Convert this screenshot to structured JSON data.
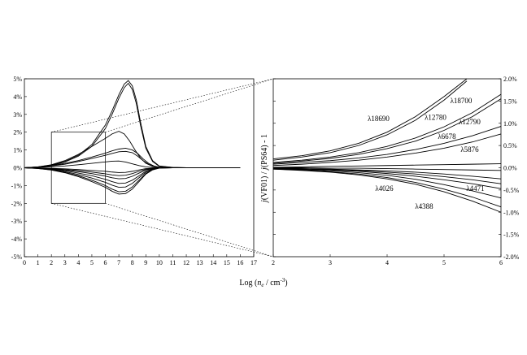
{
  "figure": {
    "xlabel_html": "Log (n<tspan font-style='italic'>e</tspan>... )",
    "xlabel_parts": [
      "Log (",
      "n",
      "e",
      " / cm",
      "-3",
      ")"
    ],
    "ylabel_parts": [
      "j",
      "(VF01) / ",
      "j",
      "(PS64) - 1"
    ]
  },
  "chart_data": [
    {
      "type": "line",
      "panel": "left",
      "title": "",
      "xlabel": "Log (ne / cm-3)",
      "ylabel": "",
      "xlim": [
        0,
        17
      ],
      "ylim": [
        -5,
        5
      ],
      "xticks": [
        0,
        1,
        2,
        3,
        4,
        5,
        6,
        7,
        8,
        9,
        10,
        11,
        12,
        13,
        14,
        15,
        16,
        17
      ],
      "yticks": [
        -5,
        -4,
        -3,
        -2,
        -1,
        0,
        1,
        2,
        3,
        4,
        5
      ],
      "ytick_labels": [
        "-5%",
        "-4%",
        "-3%",
        "-2%",
        "-1%",
        "0%",
        "1%",
        "2%",
        "3%",
        "4%",
        "5%"
      ],
      "zoom_box": {
        "x": [
          2,
          6
        ],
        "y": [
          -2,
          2
        ]
      },
      "series": [
        {
          "x": [
            0,
            1,
            2,
            3,
            4,
            5,
            6,
            6.5,
            7,
            7.4,
            7.7,
            8,
            8.3,
            8.6,
            9,
            9.5,
            10,
            11,
            12,
            16
          ],
          "values": [
            0,
            0.05,
            0.15,
            0.35,
            0.7,
            1.3,
            2.4,
            3.2,
            4.1,
            4.7,
            4.9,
            4.6,
            3.8,
            2.6,
            1.2,
            0.4,
            0.1,
            0.02,
            0,
            0
          ]
        },
        {
          "x": [
            0,
            1,
            2,
            3,
            4,
            5,
            6,
            6.5,
            7,
            7.4,
            7.7,
            8,
            8.3,
            8.6,
            9,
            9.5,
            10,
            11,
            12,
            16
          ],
          "values": [
            0,
            0.04,
            0.13,
            0.32,
            0.65,
            1.2,
            2.2,
            3.0,
            3.9,
            4.5,
            4.75,
            4.4,
            3.6,
            2.4,
            1.1,
            0.35,
            0.08,
            0.02,
            0,
            0
          ]
        },
        {
          "x": [
            0,
            1,
            2,
            3,
            4,
            5,
            6,
            6.5,
            7,
            7.4,
            7.8,
            8.2,
            8.6,
            9,
            9.5,
            10,
            11,
            12,
            16
          ],
          "values": [
            0,
            0.05,
            0.17,
            0.4,
            0.75,
            1.2,
            1.65,
            1.9,
            2.05,
            1.9,
            1.5,
            1.0,
            0.55,
            0.25,
            0.08,
            0.02,
            0,
            0,
            0
          ]
        },
        {
          "x": [
            0,
            1,
            2,
            3,
            4,
            5,
            6,
            6.5,
            7,
            7.5,
            8,
            8.4,
            8.8,
            9.2,
            9.6,
            10,
            11,
            12,
            16
          ],
          "values": [
            0,
            0.04,
            0.12,
            0.25,
            0.4,
            0.6,
            0.82,
            0.95,
            1.05,
            1.1,
            1.0,
            0.8,
            0.5,
            0.25,
            0.1,
            0.03,
            0,
            0,
            0
          ]
        },
        {
          "x": [
            0,
            1,
            2,
            3,
            4,
            5,
            6,
            6.5,
            7,
            7.5,
            8,
            8.4,
            8.8,
            9.2,
            9.6,
            10,
            11,
            12,
            16
          ],
          "values": [
            0,
            0.03,
            0.1,
            0.2,
            0.35,
            0.52,
            0.7,
            0.8,
            0.9,
            0.92,
            0.85,
            0.65,
            0.4,
            0.2,
            0.07,
            0.02,
            0,
            0,
            0
          ]
        },
        {
          "x": [
            0,
            1,
            2,
            3,
            4,
            5,
            6,
            6.5,
            7,
            7.5,
            8,
            8.5,
            9,
            9.5,
            10,
            11,
            12,
            16
          ],
          "values": [
            0,
            0.02,
            0.05,
            0.1,
            0.17,
            0.25,
            0.33,
            0.37,
            0.38,
            0.32,
            0.22,
            0.12,
            0.05,
            0.02,
            0,
            0,
            0,
            0
          ]
        },
        {
          "x": [
            0,
            1,
            2,
            3,
            4,
            5,
            6,
            6.5,
            7,
            7.5,
            8,
            8.5,
            9,
            9.5,
            10,
            11,
            12,
            16
          ],
          "values": [
            0,
            -0.01,
            -0.03,
            -0.06,
            -0.1,
            -0.15,
            -0.2,
            -0.24,
            -0.27,
            -0.26,
            -0.2,
            -0.12,
            -0.05,
            -0.02,
            0,
            0,
            0,
            0
          ]
        },
        {
          "x": [
            0,
            1,
            2,
            3,
            4,
            5,
            6,
            6.5,
            7,
            7.5,
            8,
            8.5,
            9,
            9.5,
            10,
            11,
            12,
            16
          ],
          "values": [
            0,
            -0.02,
            -0.05,
            -0.1,
            -0.16,
            -0.24,
            -0.34,
            -0.4,
            -0.44,
            -0.42,
            -0.33,
            -0.2,
            -0.09,
            -0.03,
            0,
            0,
            0,
            0
          ]
        },
        {
          "x": [
            0,
            1,
            2,
            3,
            4,
            5,
            6,
            6.5,
            7,
            7.5,
            8,
            8.5,
            9,
            9.5,
            10,
            11,
            12,
            16
          ],
          "values": [
            0,
            -0.02,
            -0.06,
            -0.13,
            -0.22,
            -0.33,
            -0.47,
            -0.56,
            -0.62,
            -0.6,
            -0.48,
            -0.3,
            -0.13,
            -0.04,
            0,
            0,
            0,
            0
          ]
        },
        {
          "x": [
            0,
            1,
            2,
            3,
            4,
            5,
            6,
            6.5,
            7,
            7.5,
            8,
            8.5,
            9,
            9.5,
            10,
            11,
            12,
            16
          ],
          "values": [
            0,
            -0.03,
            -0.08,
            -0.17,
            -0.3,
            -0.45,
            -0.65,
            -0.78,
            -0.88,
            -0.86,
            -0.7,
            -0.45,
            -0.2,
            -0.06,
            -0.01,
            0,
            0,
            0
          ]
        },
        {
          "x": [
            0,
            1,
            2,
            3,
            4,
            5,
            6,
            6.5,
            7,
            7.5,
            8,
            8.5,
            9,
            9.5,
            10,
            11,
            12,
            16
          ],
          "values": [
            0,
            -0.03,
            -0.1,
            -0.22,
            -0.38,
            -0.58,
            -0.82,
            -0.98,
            -1.1,
            -1.08,
            -0.88,
            -0.56,
            -0.25,
            -0.08,
            -0.01,
            0,
            0,
            0
          ]
        },
        {
          "x": [
            0,
            1,
            2,
            3,
            4,
            5,
            6,
            6.5,
            7,
            7.5,
            8,
            8.5,
            9,
            9.5,
            10,
            11,
            12,
            16
          ],
          "values": [
            0,
            -0.04,
            -0.12,
            -0.26,
            -0.45,
            -0.7,
            -1.0,
            -1.2,
            -1.35,
            -1.32,
            -1.08,
            -0.7,
            -0.32,
            -0.1,
            -0.02,
            0,
            0,
            0
          ]
        },
        {
          "x": [
            0,
            1,
            2,
            3,
            4,
            5,
            6,
            6.5,
            7,
            7.5,
            8,
            8.5,
            9,
            9.5,
            10,
            11,
            12,
            16
          ],
          "values": [
            0,
            -0.04,
            -0.13,
            -0.28,
            -0.5,
            -0.78,
            -1.1,
            -1.32,
            -1.48,
            -1.45,
            -1.2,
            -0.78,
            -0.36,
            -0.12,
            -0.02,
            0,
            0,
            0
          ]
        }
      ]
    },
    {
      "type": "line",
      "panel": "right",
      "title": "",
      "xlabel": "",
      "ylabel": "j(VF01) / j(PS64) - 1",
      "xlim": [
        2,
        6
      ],
      "ylim": [
        -2,
        2
      ],
      "xticks": [
        2,
        3,
        4,
        5,
        6
      ],
      "yticks": [
        -2,
        -1.5,
        -1,
        -0.5,
        0,
        0.5,
        1,
        1.5,
        2
      ],
      "ytick_labels": [
        "-2.0%",
        "-1.5%",
        "-1.0%",
        "-0.5%",
        "0.0%",
        "0.5%",
        "1.0%",
        "1.5%",
        "2.0%"
      ],
      "annotations": [
        {
          "text": "λ18690",
          "x": 3.85,
          "y": 1.05
        },
        {
          "text": "λ18700",
          "x": 5.3,
          "y": 1.45
        },
        {
          "text": "λ12780",
          "x": 4.85,
          "y": 1.08
        },
        {
          "text": "λ12790",
          "x": 5.45,
          "y": 0.98
        },
        {
          "text": "λ6678",
          "x": 5.05,
          "y": 0.65
        },
        {
          "text": "λ5876",
          "x": 5.45,
          "y": 0.36
        },
        {
          "text": "λ4026",
          "x": 3.95,
          "y": -0.52
        },
        {
          "text": "λ4471",
          "x": 5.55,
          "y": -0.52
        },
        {
          "text": "λ4388",
          "x": 4.65,
          "y": -0.92
        }
      ],
      "series": [
        {
          "x": [
            2,
            2.5,
            3,
            3.5,
            4,
            4.5,
            5,
            5.4
          ],
          "values": [
            0.2,
            0.27,
            0.38,
            0.55,
            0.8,
            1.15,
            1.6,
            2.0
          ]
        },
        {
          "x": [
            2,
            2.5,
            3,
            3.5,
            4,
            4.5,
            5,
            5.4
          ],
          "values": [
            0.17,
            0.24,
            0.34,
            0.5,
            0.74,
            1.07,
            1.52,
            1.95
          ]
        },
        {
          "x": [
            2,
            2.5,
            3,
            3.5,
            4,
            4.5,
            5,
            5.5,
            6
          ],
          "values": [
            0.12,
            0.17,
            0.24,
            0.34,
            0.48,
            0.67,
            0.92,
            1.24,
            1.65
          ]
        },
        {
          "x": [
            2,
            2.5,
            3,
            3.5,
            4,
            4.5,
            5,
            5.5,
            6
          ],
          "values": [
            0.1,
            0.15,
            0.21,
            0.3,
            0.43,
            0.6,
            0.84,
            1.15,
            1.55
          ]
        },
        {
          "x": [
            2,
            2.5,
            3,
            3.5,
            4,
            4.5,
            5,
            5.5,
            6
          ],
          "values": [
            0.08,
            0.12,
            0.16,
            0.22,
            0.3,
            0.41,
            0.55,
            0.72,
            0.93
          ]
        },
        {
          "x": [
            2,
            2.5,
            3,
            3.5,
            4,
            4.5,
            5,
            5.5,
            6
          ],
          "values": [
            0.05,
            0.08,
            0.12,
            0.17,
            0.24,
            0.33,
            0.44,
            0.58,
            0.76
          ]
        },
        {
          "x": [
            2,
            2.5,
            3,
            3.5,
            4,
            4.5,
            5,
            5.5,
            6
          ],
          "values": [
            0.01,
            0.02,
            0.03,
            0.04,
            0.05,
            0.06,
            0.07,
            0.08,
            0.09
          ]
        },
        {
          "x": [
            2,
            2.5,
            3,
            3.5,
            4,
            4.5,
            5,
            5.5,
            6
          ],
          "values": [
            0,
            0,
            -0.01,
            -0.01,
            -0.02,
            -0.03,
            -0.04,
            -0.05,
            -0.06
          ]
        },
        {
          "x": [
            2,
            2.5,
            3,
            3.5,
            4,
            4.5,
            5,
            5.5,
            6
          ],
          "values": [
            -0.01,
            -0.02,
            -0.03,
            -0.05,
            -0.07,
            -0.1,
            -0.14,
            -0.19,
            -0.25
          ]
        },
        {
          "x": [
            2,
            2.5,
            3,
            3.5,
            4,
            4.5,
            5,
            5.5,
            6
          ],
          "values": [
            -0.01,
            -0.02,
            -0.04,
            -0.06,
            -0.1,
            -0.14,
            -0.2,
            -0.27,
            -0.36
          ]
        },
        {
          "x": [
            2,
            2.5,
            3,
            3.5,
            4,
            4.5,
            5,
            5.5,
            6
          ],
          "values": [
            -0.02,
            -0.03,
            -0.05,
            -0.08,
            -0.13,
            -0.19,
            -0.27,
            -0.36,
            -0.47
          ]
        },
        {
          "x": [
            2,
            2.5,
            3,
            3.5,
            4,
            4.5,
            5,
            5.5,
            6
          ],
          "values": [
            -0.02,
            -0.04,
            -0.07,
            -0.11,
            -0.17,
            -0.26,
            -0.38,
            -0.52,
            -0.68
          ]
        },
        {
          "x": [
            2,
            2.5,
            3,
            3.5,
            4,
            4.5,
            5,
            5.5,
            6
          ],
          "values": [
            -0.03,
            -0.05,
            -0.09,
            -0.14,
            -0.22,
            -0.33,
            -0.48,
            -0.66,
            -0.88
          ]
        },
        {
          "x": [
            2,
            2.5,
            3,
            3.5,
            4,
            4.5,
            5,
            5.5,
            6
          ],
          "values": [
            -0.03,
            -0.06,
            -0.1,
            -0.16,
            -0.25,
            -0.37,
            -0.54,
            -0.75,
            -1.0
          ]
        }
      ]
    }
  ]
}
